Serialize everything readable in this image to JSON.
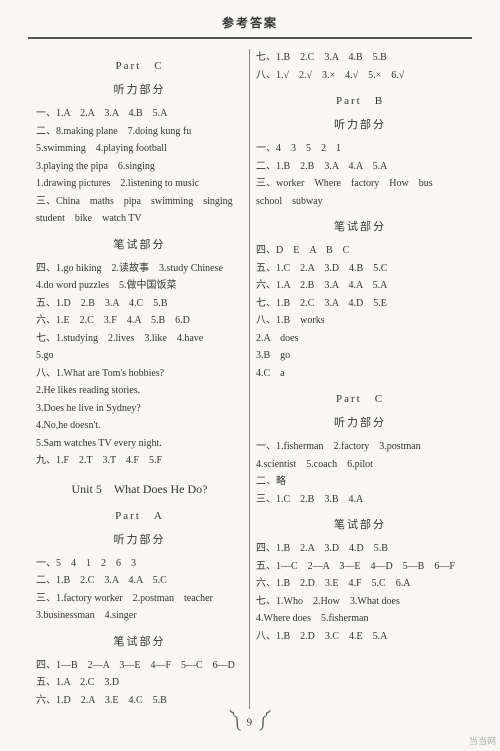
{
  "header": "参考答案",
  "footer_page": "9",
  "watermark": "当当网",
  "left": {
    "part_c": "Part　C",
    "listen": "听力部分",
    "l1": "一、1.A　2.A　3.A　4.B　5.A",
    "l2": "二、8.making plane　7.doing kung fu",
    "l3": "5.swimming　4.playing football",
    "l4": "3.playing the pipa　6.singing",
    "l5": "1.drawing pictures　2.listening to music",
    "l6": "三、China　maths　pipa　swimming　singing",
    "l7": "student　bike　watch TV",
    "write": "笔试部分",
    "w1": "四、1.go hiking　2.读故事　3.study Chinese",
    "w2": "4.do word puzzles　5.做中国饭菜",
    "w3": "五、1.D　2.B　3.A　4.C　5.B",
    "w4": "六、1.E　2.C　3.F　4.A　5.B　6.D",
    "w5": "七、1.studying　2.lives　3.like　4.have",
    "w6": "5.go",
    "w7": "八、1.What are Tom's hobbies?",
    "w8": "2.He likes reading stories.",
    "w9": "3.Does he live in Sydney?",
    "w10": "4.No,he doesn't.",
    "w11": "5.Sam watches TV every night.",
    "w12": "九、1.F　2.T　3.T　4.F　5.F",
    "unit": "Unit 5　What Does He Do?",
    "part_a": "Part　A",
    "listen2": "听力部分",
    "la1": "一、5　4　1　2　6　3",
    "la2": "二、1.B　2.C　3.A　4.A　5.C",
    "la3": "三、1.factory worker　2.postman　teacher",
    "la4": "3.businessman　4.singer",
    "write2": "笔试部分",
    "wa1": "四、1—B　2—A　3—E　4—F　5—C　6—D",
    "wa2": "五、1.A　2.C　3.D",
    "wa3": "六、1.D　2.A　3.E　4.C　5.B"
  },
  "right": {
    "r1": "七、1.B　2.C　3.A　4.B　5.B",
    "r2": "八、1.√　2.√　3.×　4.√　5.×　6.√",
    "part_b": "Part　B",
    "listen": "听力部分",
    "l1": "一、4　3　5　2　1",
    "l2": "二、1.B　2.B　3.A　4.A　5.A",
    "l3": "三、worker　Where　factory　How　bus",
    "l4": "school　subway",
    "write": "笔试部分",
    "w1": "四、D　E　A　B　C",
    "w2": "五、1.C　2.A　3.D　4.B　5.C",
    "w3": "六、1.A　2.B　3.A　4.A　5.A",
    "w4": "七、1.B　2.C　3.A　4.D　5.E",
    "w5": "八、1.B　works",
    "w6": "2.A　does",
    "w7": "3.B　go",
    "w8": "4.C　a",
    "part_c": "Part　C",
    "listen2": "听力部分",
    "lc1": "一、1.fisherman　2.factory　3.postman",
    "lc2": "4.scientist　5.coach　6.pilot",
    "lc3": "二、略",
    "lc4": "三、1.C　2.B　3.B　4.A",
    "write2": "笔试部分",
    "wc1": "四、1.B　2.A　3.D　4.D　5.B",
    "wc2": "五、1—C　2—A　3—E　4—D　5—B　6—F",
    "wc3": "六、1.B　2.D　3.E　4.F　5.C　6.A",
    "wc4": "七、1.Who　2.How　3.What does",
    "wc5": "4.Where does　5.fisherman",
    "wc6": "八、1.B　2.D　3.C　4.E　5.A"
  }
}
